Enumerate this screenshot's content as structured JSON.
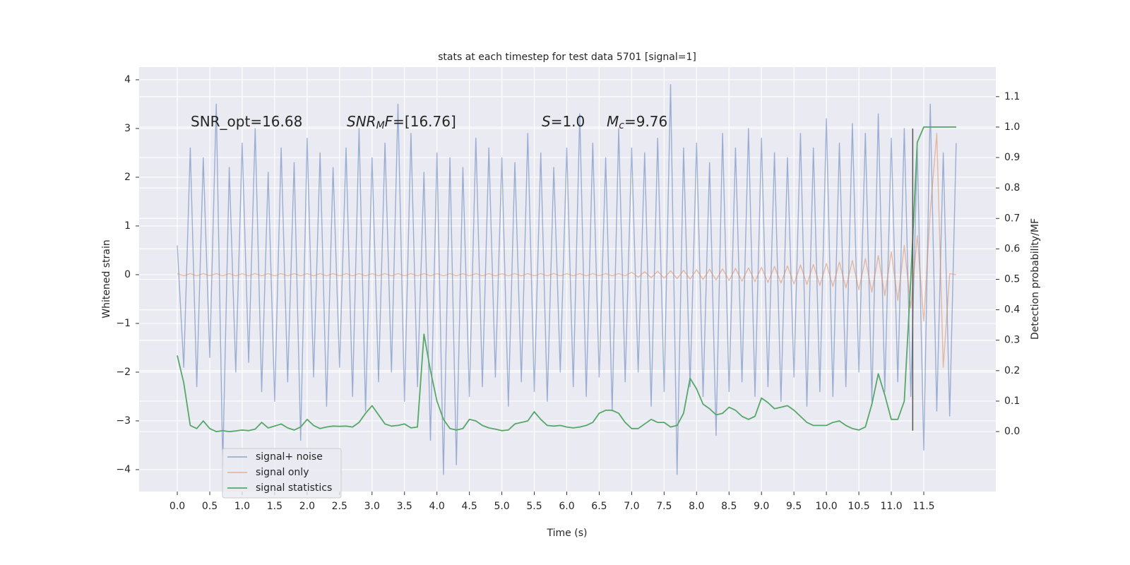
{
  "chart_data": {
    "type": "line",
    "title": "stats at each timestep for test data 5701 [signal=1]",
    "xlabel": "Time (s)",
    "ylabel": "Whitened strain",
    "y2label": "Detection probability/MF",
    "annotations": [
      [
        {
          "text": "SNR_opt=16.68"
        }
      ],
      [
        {
          "text": "SNR",
          "italic": true
        },
        {
          "text": "M",
          "italic": true,
          "sub": true
        },
        {
          "text": "F",
          "italic": true
        },
        {
          "text": "=[16.76]"
        }
      ],
      [
        {
          "text": "S",
          "italic": true
        },
        {
          "text": "=1.0"
        }
      ],
      [
        {
          "text": "M",
          "italic": true
        },
        {
          "text": "c",
          "italic": true,
          "sub": true
        },
        {
          "text": "=9.76"
        }
      ]
    ],
    "xlim": [
      -0.588,
      12.61
    ],
    "ylim": [
      -4.45,
      4.26
    ],
    "y2lim": [
      -0.197,
      1.197
    ],
    "xticks": [
      {
        "value": 0,
        "label": "0.0"
      },
      0.5,
      {
        "value": 1,
        "label": "1.0"
      },
      1.5,
      {
        "value": 2,
        "label": "2.0"
      },
      2.5,
      {
        "value": 3,
        "label": "3.0"
      },
      3.5,
      {
        "value": 4,
        "label": "4.0"
      },
      4.5,
      {
        "value": 5,
        "label": "5.0"
      },
      5.5,
      {
        "value": 6,
        "label": "6.0"
      },
      6.5,
      {
        "value": 7,
        "label": "7.0"
      },
      7.5,
      {
        "value": 8,
        "label": "8.0"
      },
      8.5,
      {
        "value": 9,
        "label": "9.0"
      },
      9.5,
      {
        "value": 10,
        "label": "10.0"
      },
      10.5,
      {
        "value": 11,
        "label": "11.0"
      },
      11.5
    ],
    "yticks": [
      {
        "value": -4,
        "label": "−4"
      },
      {
        "value": -3,
        "label": "−3"
      },
      {
        "value": -2,
        "label": "−2"
      },
      {
        "value": -1,
        "label": "−1"
      },
      0,
      1,
      2,
      3,
      4
    ],
    "y2ticks": [
      {
        "value": 0,
        "label": "0.0"
      },
      0.1,
      0.2,
      0.3,
      0.4,
      0.5,
      0.6,
      0.7,
      0.8,
      0.9,
      {
        "value": 1,
        "label": "1.0"
      },
      1.1
    ],
    "grid": true,
    "legend": "lower left",
    "x": [
      0.0,
      0.1,
      0.2,
      0.3,
      0.4,
      0.5,
      0.6,
      0.7,
      0.8,
      0.9,
      1.0,
      1.1,
      1.2,
      1.3,
      1.4,
      1.5,
      1.6,
      1.7,
      1.8,
      1.9,
      2.0,
      2.1,
      2.2,
      2.3,
      2.4,
      2.5,
      2.6,
      2.7,
      2.8,
      2.9,
      3.0,
      3.1,
      3.2,
      3.3,
      3.4,
      3.5,
      3.6,
      3.7,
      3.8,
      3.9,
      4.0,
      4.1,
      4.2,
      4.3,
      4.4,
      4.5,
      4.6,
      4.7,
      4.8,
      4.9,
      5.0,
      5.1,
      5.2,
      5.3,
      5.4,
      5.5,
      5.6,
      5.7,
      5.8,
      5.9,
      6.0,
      6.1,
      6.2,
      6.3,
      6.4,
      6.5,
      6.6,
      6.7,
      6.8,
      6.9,
      7.0,
      7.1,
      7.2,
      7.3,
      7.4,
      7.5,
      7.6,
      7.7,
      7.8,
      7.9,
      8.0,
      8.1,
      8.2,
      8.3,
      8.4,
      8.5,
      8.6,
      8.7,
      8.8,
      8.9,
      9.0,
      9.1,
      9.2,
      9.3,
      9.4,
      9.5,
      9.6,
      9.7,
      9.8,
      9.9,
      10.0,
      10.1,
      10.2,
      10.3,
      10.4,
      10.5,
      10.6,
      10.7,
      10.8,
      10.9,
      11.0,
      11.1,
      11.2,
      11.3,
      11.4,
      11.5,
      11.6,
      11.7,
      11.8,
      11.9,
      12.0
    ],
    "series": [
      {
        "name": "signal+ noise",
        "color": "#4c72b0",
        "alpha": 0.5,
        "values": [
          0.6,
          -1.9,
          2.6,
          -2.3,
          2.4,
          -1.7,
          3.5,
          -3.9,
          2.2,
          -2.0,
          2.7,
          -1.8,
          3.0,
          -2.4,
          2.1,
          -2.6,
          2.6,
          -2.2,
          2.3,
          -3.4,
          2.8,
          -2.1,
          2.5,
          -2.7,
          2.2,
          -1.9,
          2.6,
          -2.5,
          3.0,
          -2.8,
          2.4,
          -2.2,
          2.7,
          -2.0,
          3.5,
          -2.6,
          2.9,
          -2.3,
          2.1,
          -3.4,
          2.5,
          -4.1,
          2.4,
          -3.9,
          2.2,
          -2.5,
          2.8,
          -2.3,
          2.6,
          -2.1,
          2.4,
          -2.7,
          2.3,
          -2.2,
          2.9,
          -2.4,
          2.5,
          -2.6,
          2.2,
          -2.0,
          2.6,
          -2.3,
          3.3,
          -2.5,
          2.7,
          -2.1,
          2.4,
          -2.8,
          3.0,
          -2.2,
          2.6,
          -2.0,
          2.5,
          -2.7,
          2.8,
          -2.4,
          3.9,
          -4.1,
          2.6,
          -2.3,
          2.7,
          -2.5,
          2.3,
          -3.3,
          2.9,
          -2.4,
          2.6,
          -2.2,
          3.0,
          -2.5,
          2.8,
          -2.3,
          2.5,
          -2.6,
          2.4,
          -2.1,
          2.9,
          -2.7,
          2.6,
          -2.4,
          3.2,
          -2.5,
          2.7,
          -2.3,
          3.1,
          -2.0,
          2.9,
          -2.6,
          3.3,
          -2.4,
          2.8,
          -2.2,
          3.0,
          -2.5,
          2.6,
          -3.6,
          3.5,
          -2.8,
          2.5,
          -2.9,
          2.7
        ]
      },
      {
        "name": "signal only",
        "color": "#dd8452",
        "alpha": 0.5,
        "values": [
          0.02,
          -0.02,
          0.02,
          -0.02,
          0.02,
          -0.02,
          0.02,
          -0.02,
          0.02,
          -0.02,
          0.02,
          -0.02,
          0.02,
          -0.02,
          0.02,
          -0.02,
          0.02,
          -0.02,
          0.02,
          -0.02,
          0.02,
          -0.02,
          0.02,
          -0.02,
          0.02,
          -0.02,
          0.02,
          -0.02,
          0.02,
          -0.02,
          0.02,
          -0.02,
          0.02,
          -0.02,
          0.02,
          -0.02,
          0.02,
          -0.02,
          0.02,
          -0.02,
          0.02,
          -0.02,
          0.02,
          -0.02,
          0.02,
          -0.02,
          0.02,
          -0.02,
          0.02,
          -0.02,
          0.02,
          -0.02,
          0.02,
          -0.02,
          0.02,
          -0.02,
          0.02,
          -0.02,
          0.02,
          -0.02,
          0.02,
          -0.02,
          0.02,
          -0.02,
          0.02,
          -0.02,
          0.02,
          -0.02,
          0.02,
          -0.02,
          0.05,
          -0.05,
          0.06,
          -0.06,
          0.07,
          -0.07,
          0.08,
          -0.08,
          0.09,
          -0.09,
          0.1,
          -0.1,
          0.11,
          -0.11,
          0.12,
          -0.12,
          0.13,
          -0.13,
          0.14,
          -0.14,
          0.15,
          -0.16,
          0.17,
          -0.17,
          0.18,
          -0.19,
          0.2,
          -0.2,
          0.21,
          -0.22,
          0.23,
          -0.24,
          0.26,
          -0.27,
          0.29,
          -0.31,
          0.33,
          -0.36,
          0.39,
          -0.43,
          0.47,
          -0.53,
          0.6,
          -0.68,
          0.8,
          -0.95,
          1.3,
          2.9,
          -1.9,
          0.02,
          0.0
        ]
      },
      {
        "name": "signal statistics",
        "color": "#55a868",
        "alpha": 1,
        "axis": "y2",
        "values": [
          0.25,
          0.16,
          0.02,
          0.01,
          0.035,
          0.01,
          0.0,
          0.003,
          0.0,
          0.002,
          0.005,
          0.003,
          0.008,
          0.03,
          0.012,
          0.018,
          0.025,
          0.012,
          0.005,
          0.015,
          0.04,
          0.02,
          0.01,
          0.015,
          0.018,
          0.017,
          0.018,
          0.015,
          0.03,
          0.06,
          0.085,
          0.055,
          0.025,
          0.018,
          0.02,
          0.025,
          0.012,
          0.015,
          0.32,
          0.2,
          0.1,
          0.04,
          0.01,
          0.005,
          0.01,
          0.04,
          0.035,
          0.02,
          0.012,
          0.008,
          0.003,
          0.005,
          0.025,
          0.03,
          0.035,
          0.065,
          0.04,
          0.02,
          0.018,
          0.02,
          0.015,
          0.012,
          0.015,
          0.02,
          0.03,
          0.06,
          0.07,
          0.07,
          0.06,
          0.03,
          0.01,
          0.01,
          0.025,
          0.04,
          0.03,
          0.03,
          0.015,
          0.02,
          0.06,
          0.175,
          0.14,
          0.09,
          0.075,
          0.055,
          0.06,
          0.08,
          0.07,
          0.05,
          0.04,
          0.05,
          0.11,
          0.095,
          0.075,
          0.08,
          0.085,
          0.07,
          0.05,
          0.03,
          0.02,
          0.02,
          0.02,
          0.03,
          0.035,
          0.02,
          0.01,
          0.005,
          0.015,
          0.09,
          0.19,
          0.12,
          0.04,
          0.04,
          0.1,
          0.5,
          0.95,
          1.0,
          1.0,
          1.0,
          1.0,
          1.0,
          1.0
        ]
      }
    ],
    "vline": {
      "x": 11.33,
      "y": [
        -3.2,
        3.0
      ],
      "color": "#555555"
    }
  }
}
